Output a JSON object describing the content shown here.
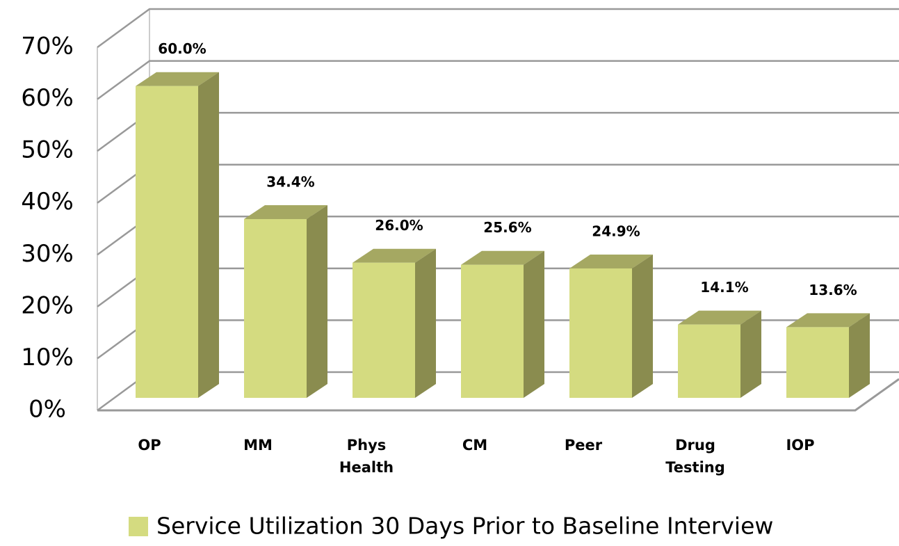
{
  "chart_data": {
    "type": "bar3d",
    "categories": [
      "OP",
      "MM",
      "Phys Health",
      "CM",
      "Peer",
      "Drug Testing",
      "IOP"
    ],
    "series": [
      {
        "name": "Service Utilization 30 Days Prior to Baseline Interview",
        "color": "#d4db80",
        "values": [
          60.0,
          34.4,
          26.0,
          25.6,
          24.9,
          14.1,
          13.6
        ],
        "value_labels": [
          "60.0%",
          "34.4%",
          "26.0%",
          "25.6%",
          "24.9%",
          "14.1%",
          "13.6%"
        ]
      }
    ],
    "ylim": [
      0,
      70
    ],
    "yticks": [
      {
        "value": 0,
        "label": "0%"
      },
      {
        "value": 10,
        "label": "10%"
      },
      {
        "value": 20,
        "label": "20%"
      },
      {
        "value": 30,
        "label": "30%"
      },
      {
        "value": 40,
        "label": "40%"
      },
      {
        "value": 50,
        "label": "50%"
      },
      {
        "value": 60,
        "label": "60%"
      },
      {
        "value": 70,
        "label": "70%"
      }
    ],
    "grid": true,
    "legend": "bottom"
  }
}
